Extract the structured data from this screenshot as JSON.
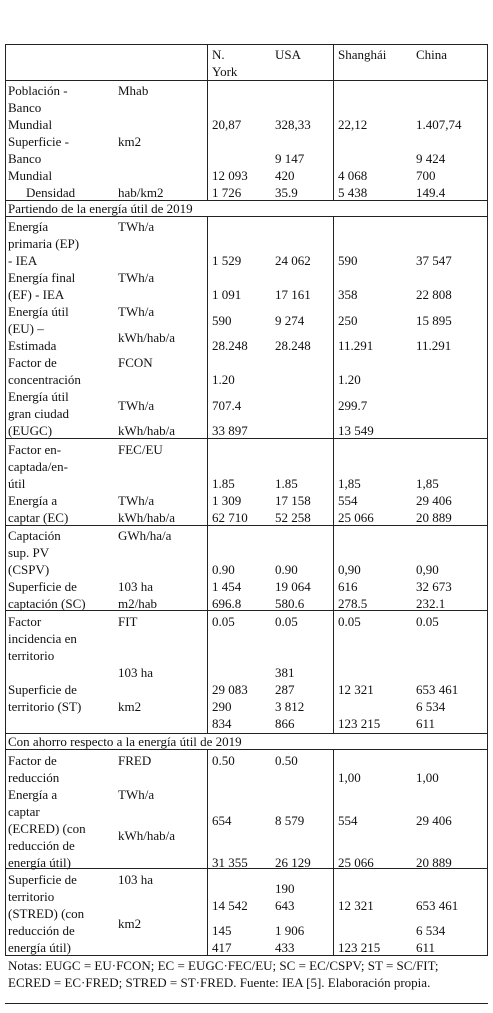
{
  "table": {
    "header": [
      "N.\nYork",
      "USA",
      "Shanghái",
      "China"
    ],
    "rows": [
      [
        "Población -\nBanco\nMundial",
        "Mhab",
        "20,87",
        "328,33",
        "22,12",
        "1.407,74"
      ],
      [
        "Superficie -\nBanco\nMundial",
        "km2",
        "12 093",
        "9 147\n420",
        "4 068",
        "9 424\n700"
      ],
      [
        "Densidad",
        "hab/km2",
        "1 726",
        "35.9",
        "5 438",
        "149.4"
      ],
      [
        "Partiendo de la energía útil de 2019"
      ],
      [
        "Energía\nprimaria (EP)\n- IEA",
        "TWh/a",
        "1 529",
        "24 062",
        "590",
        "37 547"
      ],
      [
        "Energía final\n(EF) - IEA",
        "TWh/a",
        "1 091",
        "17 161",
        "358",
        "22 808"
      ],
      [
        "Energía útil\n(EU) –\nEstimada",
        "TWh/a",
        "kWh/hab/a",
        "590",
        "9 274",
        "250",
        "15 895",
        "28.248",
        "28.248",
        "11.291",
        "11.291"
      ],
      [
        "Factor de\nconcentración",
        "FCON",
        "1.20",
        "1.20"
      ],
      [
        "Energía útil\ngran ciudad\n(EUGC)",
        "TWh/a",
        "kWh/hab/a",
        "707.4",
        "299.7",
        "33 897",
        "13 549"
      ],
      [
        "Factor en-\ncaptada/en-\nútil",
        "FEC/EU",
        "1.85",
        "1.85",
        "1,85",
        "1,85"
      ],
      [
        "Energía a\ncaptar (EC)",
        "TWh/a",
        "kWh/hab/a",
        "1 309",
        "17 158",
        "554",
        "29 406",
        "62 710",
        "52 258",
        "25 066",
        "20 889"
      ],
      [
        "Captación\nsup. PV\n(CSPV)",
        "GWh/ha/a",
        "0.90",
        "0.90",
        "0,90",
        "0,90"
      ],
      [
        "Superficie de\ncaptación (SC)",
        "103 ha",
        "m2/hab",
        "1 454",
        "19 064",
        "616",
        "32 673",
        "696.8",
        "580.6",
        "278.5",
        "232.1"
      ],
      [
        "Factor\nincidencia en\nterritorio",
        "FIT",
        "0.05",
        "0.05",
        "0.05",
        "0.05"
      ],
      [
        "Superficie de\nterritorio (ST)",
        "103 ha",
        "km2",
        "29 083",
        "381\n287",
        "12 321",
        "653 461",
        "290\n834",
        "3 812\n866",
        "123 215",
        "6 534\n611"
      ],
      [
        "Con ahorro respecto a la energía útil de 2019"
      ],
      [
        "Factor de\nreducción",
        "FRED",
        "0.50",
        "0.50",
        "1,00",
        "1,00"
      ],
      [
        "Energía a\ncaptar\n(ECRED)    (con\n reducción de\nenergía útil)",
        "TWh/a",
        "kWh/hab/a",
        "654",
        "8 579",
        "554",
        "29 406",
        "31 355",
        "26 129",
        "25 066",
        "20 889"
      ],
      [
        "Superficie de\nterritorio\n(STRED)    (con\n reducción de\nenergía útil)",
        "103 ha",
        "km2",
        "14 542",
        "190\n643",
        "12 321",
        "653 461",
        "145\n417",
        "1 906\n433",
        "123 215",
        "6 534\n611"
      ]
    ],
    "notes": "Notas: EUGC = EU·FCON; EC = EUGC·FEC/EU; SC = EC/CSPV; ST = SC/FIT; ECRED = EC·FRED; STRED = ST·FRED. Fuente: IEA [5]. Elaboración propia."
  }
}
